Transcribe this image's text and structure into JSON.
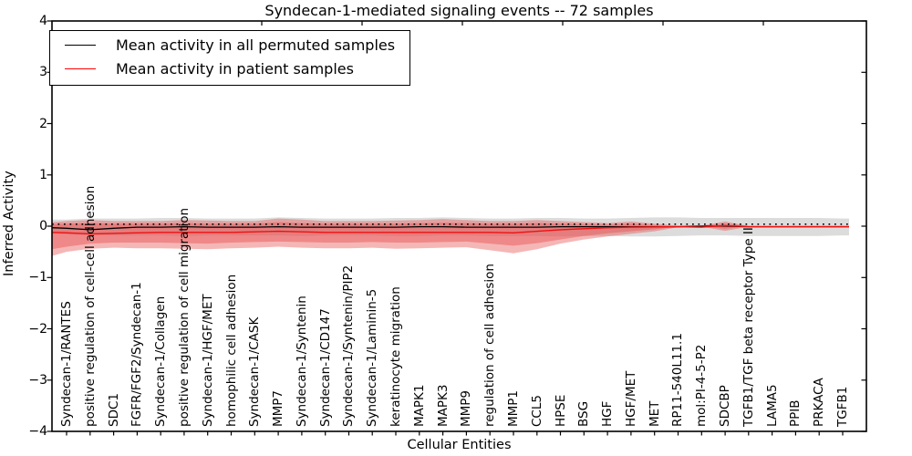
{
  "title": "Syndecan-1-mediated signaling events -- 72 samples",
  "axes": {
    "xlabel": "Cellular Entities",
    "ylabel": "Inferred Activity"
  },
  "legend": {
    "items": [
      {
        "label": "Mean activity in all permuted samples",
        "color": "#000000"
      },
      {
        "label": "Mean activity in patient samples",
        "color": "#ff0000"
      }
    ]
  },
  "chart_data": {
    "type": "line",
    "title": "Syndecan-1-mediated signaling events -- 72 samples",
    "xlabel": "Cellular Entities",
    "ylabel": "Inferred Activity",
    "ylim": [
      -4,
      4
    ],
    "yticks": [
      4,
      3,
      2,
      1,
      0,
      -1,
      -2,
      -3,
      -4
    ],
    "grid": false,
    "legend_position": "upper left",
    "categories": [
      "Syndecan-1/RANTES",
      "positive regulation of cell-cell adhesion",
      "SDC1",
      "FGFR/FGF2/Syndecan-1",
      "Syndecan-1/Collagen",
      "positive regulation of cell migration",
      "Syndecan-1/HGF/MET",
      "homophilic cell adhesion",
      "Syndecan-1/CASK",
      "MMP7",
      "Syndecan-1/Syntenin",
      "Syndecan-1/CD147",
      "Syndecan-1/Syntenin/PIP2",
      "Syndecan-1/Laminin-5",
      "keratinocyte migration",
      "MAPK1",
      "MAPK3",
      "MMP9",
      "regulation of cell adhesion",
      "MMP1",
      "CCL5",
      "HPSE",
      "BSG",
      "HGF",
      "HGF/MET",
      "MET",
      "RP11-540L11.1",
      "mol:PI-4-5-P2",
      "SDCBP",
      "TGFB1/TGF beta receptor Type II",
      "LAMA5",
      "PPIB",
      "PRKACA",
      "TGFB1"
    ],
    "series": [
      {
        "name": "Mean activity in all permuted samples",
        "color": "#000000",
        "width": 1.3,
        "edge_left": -0.03,
        "values": [
          -0.04,
          -0.07,
          -0.04,
          -0.02,
          -0.02,
          -0.01,
          -0.02,
          -0.02,
          -0.02,
          -0.01,
          -0.02,
          -0.02,
          -0.02,
          -0.02,
          -0.02,
          -0.01,
          -0.01,
          -0.02,
          -0.02,
          -0.02,
          -0.02,
          -0.01,
          -0.01,
          -0.01,
          -0.01,
          -0.01,
          -0.01,
          0.0,
          0.0,
          -0.01,
          -0.01,
          -0.01,
          -0.01,
          -0.01
        ]
      },
      {
        "name": "Mean activity in patient samples",
        "color": "#ee1111",
        "width": 1.4,
        "edge_left": -0.12,
        "values": [
          -0.13,
          -0.15,
          -0.14,
          -0.13,
          -0.12,
          -0.12,
          -0.12,
          -0.12,
          -0.11,
          -0.1,
          -0.11,
          -0.12,
          -0.12,
          -0.12,
          -0.12,
          -0.12,
          -0.12,
          -0.12,
          -0.12,
          -0.13,
          -0.1,
          -0.07,
          -0.05,
          -0.03,
          -0.02,
          -0.015,
          -0.01,
          -0.02,
          0.01,
          -0.01,
          -0.01,
          -0.01,
          -0.01,
          -0.01
        ]
      }
    ],
    "reference_line": {
      "style": "dotted",
      "color": "#000000",
      "y": 0.04
    },
    "bands": [
      {
        "name": "permuted-samples-range",
        "color": "#bfbfbf",
        "opacity": 0.55,
        "edge_left": {
          "upper": 0.13,
          "lower": -0.15
        },
        "upper": [
          0.13,
          0.15,
          0.15,
          0.15,
          0.16,
          0.16,
          0.15,
          0.15,
          0.15,
          0.17,
          0.16,
          0.15,
          0.15,
          0.15,
          0.16,
          0.16,
          0.17,
          0.16,
          0.15,
          0.15,
          0.16,
          0.16,
          0.15,
          0.15,
          0.16,
          0.17,
          0.17,
          0.16,
          0.16,
          0.16,
          0.16,
          0.16,
          0.16,
          0.15
        ],
        "lower": [
          -0.16,
          -0.18,
          -0.18,
          -0.18,
          -0.18,
          -0.19,
          -0.18,
          -0.18,
          -0.18,
          -0.18,
          -0.19,
          -0.18,
          -0.18,
          -0.18,
          -0.19,
          -0.19,
          -0.18,
          -0.18,
          -0.19,
          -0.19,
          -0.19,
          -0.2,
          -0.19,
          -0.19,
          -0.2,
          -0.2,
          -0.19,
          -0.18,
          -0.18,
          -0.19,
          -0.19,
          -0.19,
          -0.19,
          -0.18
        ]
      },
      {
        "name": "patient-samples-range-outer",
        "color": "#e85050",
        "opacity": 0.42,
        "edge_left": {
          "upper": 0.08,
          "lower": -0.58
        },
        "upper": [
          0.1,
          0.12,
          0.1,
          0.1,
          0.1,
          0.12,
          0.11,
          0.1,
          0.1,
          0.15,
          0.13,
          0.1,
          0.1,
          0.1,
          0.11,
          0.12,
          0.14,
          0.12,
          0.1,
          0.1,
          0.12,
          0.1,
          0.08,
          0.06,
          0.09,
          0.05,
          0.01,
          0.01,
          0.09,
          0.005,
          0.005,
          0.005,
          0.005,
          0.005
        ],
        "lower": [
          -0.5,
          -0.44,
          -0.42,
          -0.43,
          -0.43,
          -0.44,
          -0.45,
          -0.43,
          -0.42,
          -0.4,
          -0.42,
          -0.43,
          -0.43,
          -0.42,
          -0.44,
          -0.43,
          -0.42,
          -0.41,
          -0.47,
          -0.53,
          -0.45,
          -0.34,
          -0.26,
          -0.2,
          -0.15,
          -0.1,
          -0.02,
          -0.01,
          -0.09,
          -0.01,
          -0.01,
          -0.01,
          -0.01,
          -0.01
        ]
      },
      {
        "name": "patient-samples-range-inner",
        "color": "#e85050",
        "opacity": 0.45,
        "edge_left": {
          "upper": 0.04,
          "lower": -0.45
        },
        "upper": [
          0.05,
          0.06,
          0.05,
          0.05,
          0.05,
          0.06,
          0.05,
          0.05,
          0.05,
          0.08,
          0.06,
          0.05,
          0.05,
          0.05,
          0.05,
          0.06,
          0.07,
          0.06,
          0.05,
          0.05,
          0.06,
          0.05,
          0.04,
          0.03,
          0.05,
          0.02,
          0.005,
          0.005,
          0.05,
          0.003,
          0.003,
          0.003,
          0.003,
          0.003
        ],
        "lower": [
          -0.4,
          -0.34,
          -0.32,
          -0.32,
          -0.32,
          -0.33,
          -0.34,
          -0.32,
          -0.31,
          -0.3,
          -0.31,
          -0.32,
          -0.32,
          -0.31,
          -0.32,
          -0.32,
          -0.31,
          -0.3,
          -0.34,
          -0.38,
          -0.33,
          -0.26,
          -0.19,
          -0.14,
          -0.1,
          -0.06,
          -0.01,
          -0.008,
          -0.05,
          -0.005,
          -0.005,
          -0.005,
          -0.005,
          -0.005
        ]
      }
    ]
  }
}
